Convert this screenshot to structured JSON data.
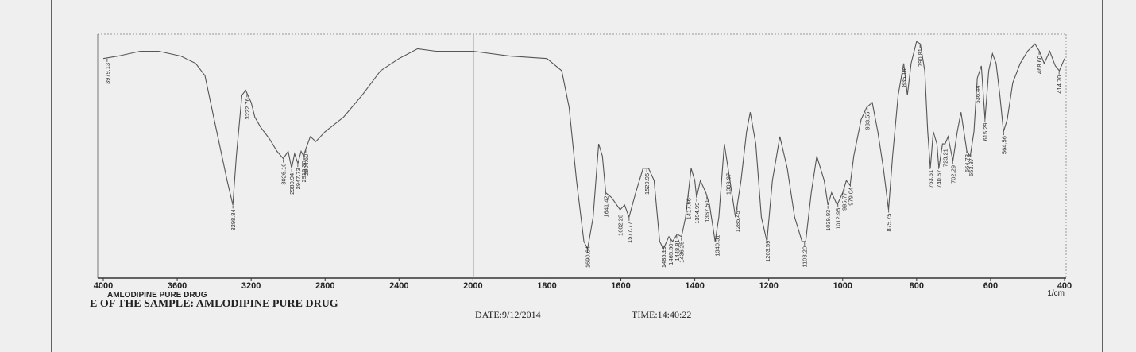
{
  "chart_data": {
    "type": "line",
    "sample_label": "AMLODIPINE PURE DRUG",
    "title": "E OF THE SAMPLE: AMLODIPINE PURE DRUG",
    "date": "DATE:9/12/2014",
    "time": "TIME:14:40:22",
    "x_unit": "1/cm",
    "color": "#555555",
    "xlim": [
      4000,
      400
    ],
    "xticks": [
      4000,
      3600,
      3200,
      2800,
      2400,
      2000,
      1800,
      1600,
      1400,
      1200,
      1000,
      800,
      600,
      400
    ],
    "ylim": [
      0,
      100
    ],
    "x": [
      4000,
      3920,
      3800,
      3700,
      3580,
      3500,
      3450,
      3400,
      3330,
      3299,
      3280,
      3250,
      3230,
      3200,
      3180,
      3150,
      3100,
      3060,
      3026,
      3000,
      2981,
      2965,
      2947,
      2930,
      2916,
      2904,
      2880,
      2850,
      2800,
      2700,
      2600,
      2500,
      2400,
      2300,
      2200,
      2100,
      2000,
      1900,
      1800,
      1760,
      1740,
      1720,
      1700,
      1690,
      1675,
      1660,
      1650,
      1641,
      1625,
      1602,
      1590,
      1578,
      1560,
      1540,
      1525,
      1510,
      1495,
      1485,
      1470,
      1460,
      1448,
      1436,
      1425,
      1410,
      1400,
      1395,
      1385,
      1370,
      1360,
      1345,
      1335,
      1320,
      1310,
      1300,
      1290,
      1275,
      1260,
      1250,
      1235,
      1220,
      1205,
      1190,
      1170,
      1150,
      1130,
      1110,
      1100,
      1085,
      1070,
      1050,
      1040,
      1030,
      1015,
      1000,
      990,
      980,
      970,
      950,
      935,
      920,
      905,
      890,
      876,
      865,
      850,
      835,
      825,
      815,
      800,
      790,
      778,
      770,
      763,
      755,
      745,
      740,
      730,
      723,
      715,
      702,
      690,
      680,
      670,
      664,
      655,
      645,
      636,
      625,
      615,
      605,
      595,
      585,
      575,
      565,
      555,
      540,
      520,
      500,
      480,
      468,
      455,
      440,
      425,
      414,
      400
    ],
    "values": [
      90,
      91,
      93,
      93,
      91,
      88,
      83,
      65,
      40,
      30,
      50,
      75,
      77,
      72,
      66,
      62,
      57,
      52,
      49,
      52,
      45,
      51,
      47,
      52,
      50,
      53,
      58,
      56,
      60,
      66,
      75,
      85,
      90,
      94,
      93,
      93,
      93,
      91,
      90,
      85,
      70,
      40,
      15,
      12,
      25,
      55,
      50,
      35,
      33,
      28,
      30,
      25,
      35,
      45,
      45,
      40,
      15,
      12,
      17,
      15,
      18,
      17,
      25,
      45,
      40,
      33,
      40,
      35,
      30,
      15,
      25,
      55,
      45,
      35,
      25,
      40,
      60,
      68,
      55,
      25,
      15,
      40,
      58,
      45,
      25,
      15,
      15,
      35,
      50,
      40,
      30,
      35,
      30,
      35,
      40,
      38,
      50,
      65,
      70,
      72,
      60,
      45,
      28,
      50,
      75,
      88,
      75,
      88,
      97,
      96,
      85,
      60,
      45,
      60,
      55,
      45,
      55,
      55,
      58,
      48,
      60,
      68,
      58,
      52,
      50,
      60,
      82,
      87,
      65,
      85,
      92,
      88,
      75,
      60,
      65,
      80,
      88,
      93,
      96,
      93,
      88,
      93,
      87,
      85,
      90
    ],
    "peak_x": [
      3979.13,
      3298.84,
      3222.76,
      3026.1,
      2980.94,
      2947.73,
      2916.3,
      2904.6,
      1690.64,
      1641.42,
      1602.28,
      1577.77,
      1529.95,
      1485.19,
      1465.5,
      1448.81,
      1436.25,
      1417.66,
      1394.99,
      1367.5,
      1340.31,
      1309.97,
      1285.45,
      1203.59,
      1103.2,
      1039.93,
      1012.95,
      995.77,
      979.04,
      933.55,
      875.75,
      835.16,
      790.81,
      763.61,
      740.67,
      723.21,
      702.29,
      664.73,
      653.87,
      636.44,
      615.29,
      564.56,
      468.6,
      414.7
    ],
    "peak_labels": [
      "3979.13",
      "3298.84",
      "3222.76",
      "3026.10",
      "2980.94",
      "2947.73",
      "2916.30",
      "2904.60",
      "1690.64",
      "1641.42",
      "1602.28",
      "1577.77",
      "1529.95",
      "1485.19",
      "1465.50",
      "1448.81",
      "1436.25",
      "1417.66",
      "1394.99",
      "1367.50",
      "1340.31",
      "1309.97",
      "1285.45",
      "1203.59",
      "1103.20",
      "1039.93",
      "1012.95",
      "995.77",
      "979.04",
      "933.55",
      "875.75",
      "835.16",
      "790.81",
      "763.61",
      "740.67",
      "723.21",
      "702.29",
      "664.73",
      "653.87",
      "636.44",
      "615.29",
      "564.56",
      "468.60",
      "414.70"
    ]
  }
}
